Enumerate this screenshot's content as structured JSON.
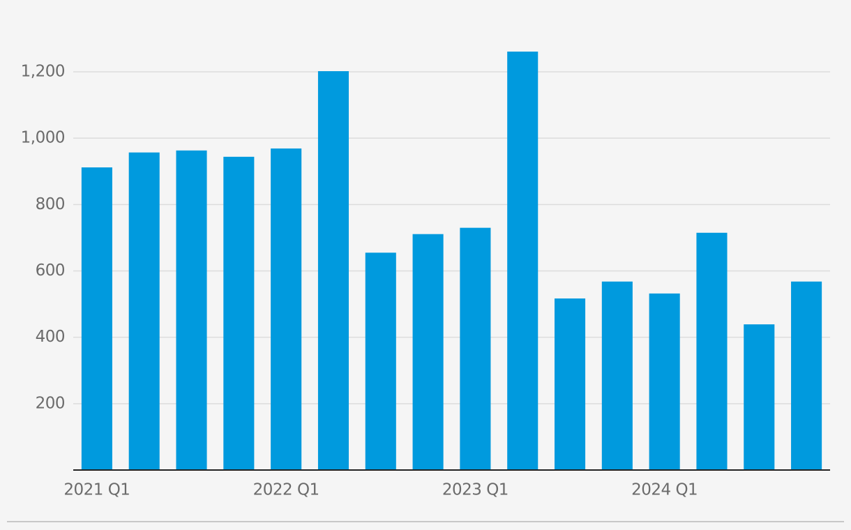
{
  "chart_data": {
    "type": "bar",
    "categories": [
      "2021 Q1",
      null,
      null,
      null,
      "2022 Q1",
      null,
      null,
      null,
      "2023 Q1",
      null,
      null,
      null,
      "2024 Q1",
      null,
      null,
      null
    ],
    "values": [
      912,
      957,
      963,
      944,
      969,
      1202,
      655,
      711,
      730,
      1261,
      517,
      568,
      532,
      715,
      439,
      568
    ],
    "color": "#009ade",
    "ylim": [
      0,
      1300
    ],
    "yticks": [
      200,
      400,
      600,
      800,
      {
        "value": 1000,
        "label": "1,000"
      },
      {
        "value": 1200,
        "label": "1,200"
      }
    ],
    "grid": true
  }
}
